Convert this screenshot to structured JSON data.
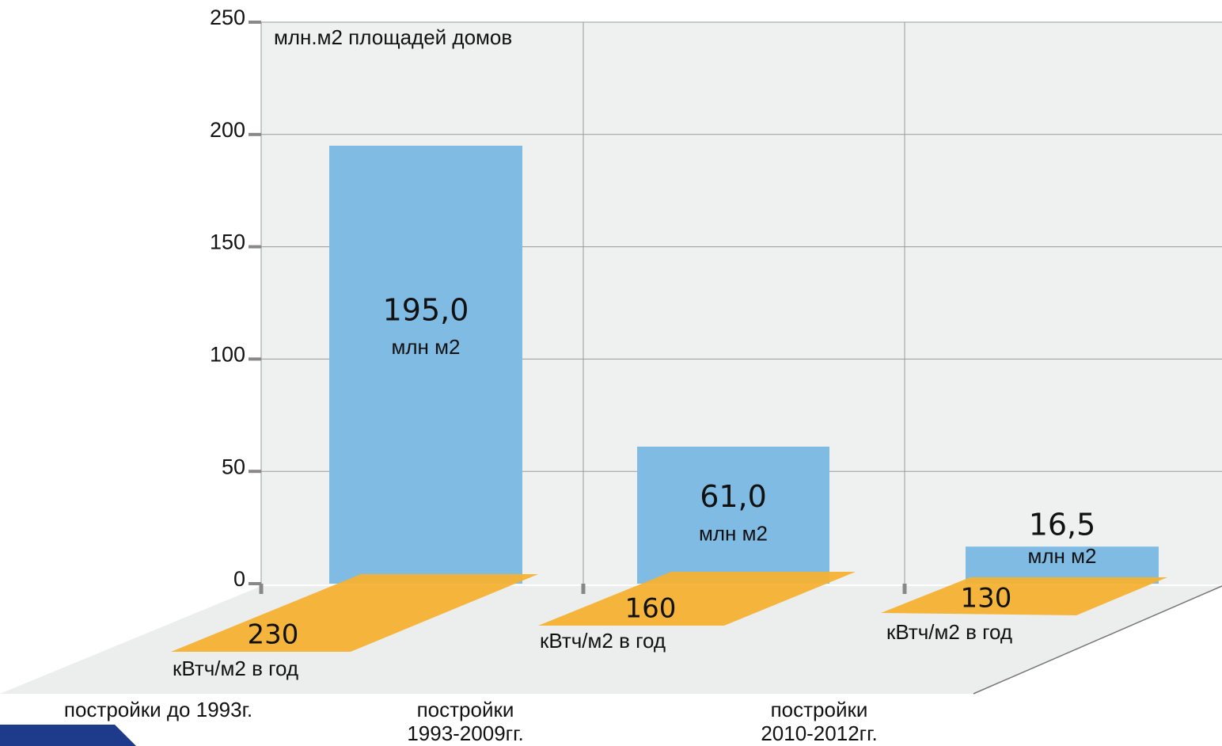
{
  "chart_data": {
    "type": "bar",
    "y_axis_label": "млн.м2 площадей домов",
    "categories": [
      [
        "постройки до 1993г."
      ],
      [
        "постройки",
        "1993-2009гг."
      ],
      [
        "постройки",
        "2010-2012гг."
      ]
    ],
    "values": [
      195,
      61,
      16.5
    ],
    "value_labels": [
      "195,0",
      "61,0",
      "16,5"
    ],
    "unit_label": "млн м2",
    "color": "#7fbbe3",
    "energy": {
      "values": [
        230,
        160,
        130
      ],
      "unit_label": "кВтч/м2 в год",
      "color": "#f6b133"
    },
    "ylim": [
      0,
      250
    ],
    "yticks": [
      0,
      50,
      100,
      150,
      200,
      250
    ],
    "grid": true
  }
}
